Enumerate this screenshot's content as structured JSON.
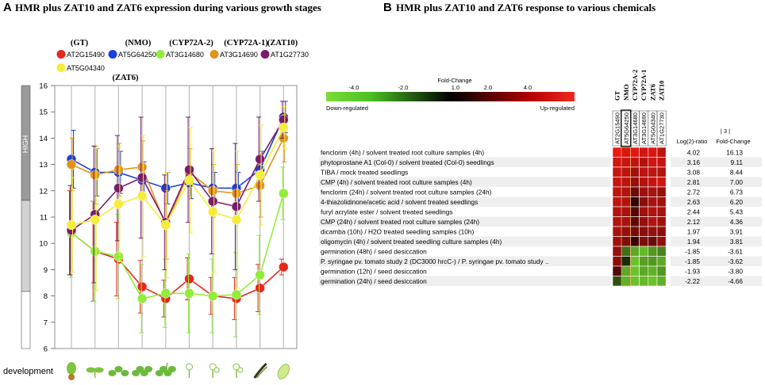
{
  "panel_a": {
    "letter": "A",
    "title": "HMR plus ZAT10 and ZAT6 expression during various growth stages",
    "level_labels": [
      "HIGH"
    ],
    "development_label": "development",
    "stage_icons": [
      "seed-icon",
      "seedling-icon",
      "rosette-small-icon",
      "rosette-icon",
      "rosette-large-icon",
      "bud-icon",
      "flower-icon",
      "flowering-icon",
      "silique-icon",
      "seed-mature-icon"
    ],
    "legend": [
      {
        "group": "(GT)",
        "gene": "AT2G15490",
        "color": "#e8281c"
      },
      {
        "group": "(NMO)",
        "gene": "AT5G64250",
        "color": "#1a3fe0"
      },
      {
        "group": "(CYP72A-2)",
        "gene": "AT3G14680",
        "color": "#92ec3a"
      },
      {
        "group": "(CYP72A-1)",
        "gene": "AT3G14690",
        "color": "#e0941c"
      },
      {
        "group": "(ZAT10)",
        "gene": "AT1G27730",
        "color": "#7a1c6a"
      },
      {
        "group": "(ZAT6)",
        "gene": "AT5G04340",
        "color": "#f5ec3c"
      }
    ]
  },
  "chart_data": {
    "type": "line",
    "title": "HMR plus ZAT10 and ZAT6 expression during various growth stages",
    "xlabel": "development",
    "ylabel": "",
    "ylim": [
      6,
      16
    ],
    "y_ticks": [
      6,
      7,
      8,
      9,
      10,
      11,
      12,
      13,
      14,
      15,
      16
    ],
    "x": [
      1,
      2,
      3,
      4,
      5,
      6,
      7,
      8,
      9,
      10
    ],
    "series": [
      {
        "name": "AT2G15490",
        "label": "(GT)",
        "color": "#e8281c",
        "values": [
          10.4,
          9.7,
          9.4,
          8.35,
          7.9,
          8.65,
          8.0,
          7.9,
          8.3,
          9.1
        ],
        "err": [
          1.6,
          1.9,
          1.4,
          1.0,
          0.7,
          0.8,
          0.7,
          0.8,
          0.9,
          0.3
        ]
      },
      {
        "name": "AT5G64250",
        "label": "(NMO)",
        "color": "#1a3fe0",
        "values": [
          13.2,
          12.7,
          12.7,
          12.4,
          12.1,
          12.3,
          12.1,
          12.1,
          12.8,
          14.8
        ],
        "err": [
          1.1,
          0.9,
          0.8,
          0.7,
          0.6,
          0.6,
          0.6,
          0.6,
          0.7,
          0.6
        ]
      },
      {
        "name": "AT3G14680",
        "label": "(CYP72A-2)",
        "color": "#92ec3a",
        "values": [
          10.4,
          9.7,
          9.5,
          7.9,
          8.1,
          8.1,
          8.0,
          8.05,
          8.8,
          11.9
        ],
        "err": [
          1.7,
          1.9,
          1.6,
          1.3,
          1.3,
          1.5,
          1.4,
          1.6,
          1.5,
          1.0
        ]
      },
      {
        "name": "AT3G14690",
        "label": "(CYP72A-1)",
        "color": "#e0941c",
        "values": [
          13.0,
          12.6,
          12.8,
          12.9,
          10.7,
          12.7,
          12.0,
          11.9,
          12.2,
          14.0
        ],
        "err": [
          1.0,
          1.1,
          1.0,
          1.0,
          1.3,
          0.9,
          1.0,
          1.1,
          1.2,
          0.9
        ]
      },
      {
        "name": "AT1G27730",
        "label": "(ZAT10)",
        "color": "#7a1c6a",
        "values": [
          10.5,
          11.1,
          12.1,
          12.5,
          10.8,
          12.8,
          11.6,
          11.4,
          13.2,
          14.7
        ],
        "err": [
          1.7,
          2.6,
          2.0,
          2.3,
          1.8,
          2.0,
          2.0,
          2.4,
          1.6,
          0.7
        ]
      },
      {
        "name": "AT5G04340",
        "label": "(ZAT6)",
        "color": "#f5ec3c",
        "values": [
          10.7,
          10.9,
          11.5,
          11.8,
          10.7,
          12.4,
          11.2,
          10.9,
          12.6,
          14.4
        ],
        "err": [
          1.8,
          2.7,
          2.2,
          2.3,
          2.0,
          2.0,
          2.3,
          2.6,
          1.9,
          0.8
        ]
      }
    ]
  },
  "panel_b": {
    "letter": "B",
    "title": "HMR plus ZAT10 and ZAT6 response to various chemicals",
    "scale": {
      "title": "Fold-Change",
      "ticks": [
        "-4.0",
        "-2.0",
        "1.0",
        "2.0",
        "4.0"
      ],
      "left_label": "Down-regulated",
      "right_label": "Up-regulated"
    },
    "columns": [
      {
        "group": "GT",
        "gene": "AT2G15490"
      },
      {
        "group": "NMO",
        "gene": "AT5G64250"
      },
      {
        "group": "CYP72A-2",
        "gene": "AT3G14680"
      },
      {
        "group": "CYP72A-1",
        "gene": "AT3G14690"
      },
      {
        "group": "ZAT6",
        "gene": "AT5G04340"
      },
      {
        "group": "ZAT10",
        "gene": "AT1G27730"
      }
    ],
    "header_abs": "| 3 |",
    "header_log": "Log(2)-ratio",
    "header_fc": "Fold-Change",
    "rows": [
      {
        "label": "fenclorim (4h) / solvent treated root culture samples (4h)",
        "log": "4.02",
        "fc": "16.13",
        "cells": [
          4.0,
          3.6,
          3.8,
          3.4,
          3.6,
          3.0
        ]
      },
      {
        "label": "phytoprostane A1 (Col-0) / solvent treated (Col-0) seedlings",
        "log": "3.16",
        "fc": "9.11",
        "cells": [
          3.4,
          3.2,
          3.1,
          2.8,
          3.4,
          3.2
        ]
      },
      {
        "label": "TIBA / mock treated seedlings",
        "log": "3.08",
        "fc": "8.44",
        "cells": [
          3.2,
          3.0,
          2.4,
          3.0,
          3.0,
          2.8
        ]
      },
      {
        "label": "CMP (4h) / solvent treated root culture samples (4h)",
        "log": "2.81",
        "fc": "7.00",
        "cells": [
          3.2,
          3.0,
          2.2,
          2.8,
          3.2,
          3.4
        ]
      },
      {
        "label": "fenclorim (24h) / solvent treated root culture samples (24h)",
        "log": "2.72",
        "fc": "6.73",
        "cells": [
          3.0,
          2.8,
          1.4,
          2.4,
          2.6,
          2.2
        ]
      },
      {
        "label": "4-thiazolidinone/acetic acid / solvent treated seedlings",
        "log": "2.63",
        "fc": "6.20",
        "cells": [
          3.0,
          2.8,
          0.4,
          2.0,
          2.6,
          2.4
        ]
      },
      {
        "label": "furyl acrylate ester / solvent treated seedlings",
        "log": "2.44",
        "fc": "5.43",
        "cells": [
          2.8,
          2.6,
          1.0,
          2.4,
          2.8,
          2.6
        ]
      },
      {
        "label": "CMP (24h) / solvent treated root culture samples (24h)",
        "log": "2.12",
        "fc": "4.36",
        "cells": [
          2.8,
          2.6,
          1.2,
          2.2,
          2.8,
          2.4
        ]
      },
      {
        "label": "dicamba (10h) / H2O treated seedling samples (10h)",
        "log": "1.97",
        "fc": "3.91",
        "cells": [
          2.6,
          2.2,
          1.6,
          2.0,
          2.2,
          2.0
        ]
      },
      {
        "label": "oligomycin (4h) / solvent treated seedling culture samples (4h)",
        "log": "1.94",
        "fc": "3.81",
        "cells": [
          2.4,
          1.8,
          0.6,
          1.8,
          1.4,
          2.2
        ]
      },
      {
        "label": "germination (48h) / seed desiccation",
        "log": "-1.85",
        "fc": "-3.61",
        "cells": [
          2.2,
          -1.6,
          -2.8,
          -3.2,
          -2.4,
          -2.0
        ]
      },
      {
        "label": "P. syringae pv. tomato study 2 (DC3000 hrcC-) / P. syringae pv. tomato study ..",
        "log": "-1.85",
        "fc": "-3.62",
        "cells": [
          2.0,
          -0.4,
          -3.4,
          -2.6,
          -2.4,
          -2.8
        ]
      },
      {
        "label": "germination (12h) / seed desiccation",
        "log": "-1.93",
        "fc": "-3.80",
        "cells": [
          1.0,
          -2.8,
          -3.4,
          -2.8,
          -3.0,
          -2.4
        ]
      },
      {
        "label": "germination (24h) / seed desiccation",
        "log": "-2.22",
        "fc": "-4.66",
        "cells": [
          -1.0,
          -3.0,
          -3.4,
          -3.2,
          -3.4,
          -3.0
        ]
      }
    ]
  }
}
